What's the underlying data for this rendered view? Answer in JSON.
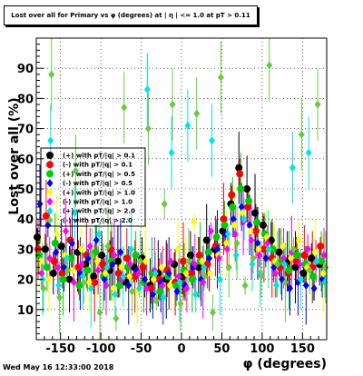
{
  "title": "Lost over all for Primary vs φ (degrees) at | η | <= 1.0 at pT > 0.11",
  "timestamp": "Wed May 16 12:33:00 2018",
  "chart_data": {
    "type": "scatter",
    "title": "Lost over all for Primary vs φ (degrees) at | η | <= 1.0 at pT > 0.11",
    "xlabel": "φ (degrees)",
    "ylabel": "Lost over all (%)",
    "xlim": [
      -180,
      180
    ],
    "ylim": [
      0,
      100
    ],
    "xticks": [
      -150,
      -100,
      -50,
      0,
      50,
      100,
      150
    ],
    "yticks": [
      10,
      20,
      30,
      40,
      50,
      60,
      70,
      80,
      90
    ],
    "grid": true,
    "legend_position": "left-middle",
    "series": [
      {
        "name": "(+) with pT/|q| > 0.1",
        "color": "#000000",
        "marker": "circle",
        "values": [
          [
            -175,
            34
          ],
          [
            -165,
            30
          ],
          [
            -155,
            22
          ],
          [
            -145,
            31
          ],
          [
            -135,
            20
          ],
          [
            -125,
            29
          ],
          [
            -115,
            25
          ],
          [
            -105,
            21
          ],
          [
            -95,
            28
          ],
          [
            -85,
            23
          ],
          [
            -75,
            26
          ],
          [
            -65,
            19
          ],
          [
            -55,
            24
          ],
          [
            -45,
            27
          ],
          [
            -35,
            18
          ],
          [
            -25,
            22
          ],
          [
            -15,
            20
          ],
          [
            -5,
            25
          ],
          [
            5,
            21
          ],
          [
            15,
            28
          ],
          [
            25,
            24
          ],
          [
            35,
            33
          ],
          [
            45,
            30
          ],
          [
            55,
            36
          ],
          [
            65,
            45
          ],
          [
            75,
            57
          ],
          [
            85,
            50
          ],
          [
            95,
            42
          ],
          [
            105,
            38
          ],
          [
            115,
            33
          ],
          [
            125,
            29
          ],
          [
            135,
            26
          ],
          [
            145,
            24
          ],
          [
            155,
            22
          ],
          [
            165,
            27
          ],
          [
            175,
            25
          ]
        ]
      },
      {
        "name": "(-) with pT/|q| > 0.1",
        "color": "#ff0000",
        "marker": "circle",
        "values": [
          [
            -175,
            30
          ],
          [
            -165,
            41
          ],
          [
            -155,
            26
          ],
          [
            -145,
            22
          ],
          [
            -135,
            33
          ],
          [
            -125,
            24
          ],
          [
            -115,
            28
          ],
          [
            -105,
            19
          ],
          [
            -95,
            25
          ],
          [
            -85,
            30
          ],
          [
            -75,
            22
          ],
          [
            -65,
            27
          ],
          [
            -55,
            21
          ],
          [
            -45,
            24
          ],
          [
            -35,
            17
          ],
          [
            -25,
            20
          ],
          [
            -15,
            23
          ],
          [
            -5,
            19
          ],
          [
            5,
            26
          ],
          [
            15,
            22
          ],
          [
            25,
            28
          ],
          [
            35,
            25
          ],
          [
            45,
            31
          ],
          [
            55,
            40
          ],
          [
            65,
            48
          ],
          [
            75,
            55
          ],
          [
            85,
            44
          ],
          [
            95,
            36
          ],
          [
            105,
            30
          ],
          [
            115,
            27
          ],
          [
            125,
            24
          ],
          [
            135,
            22
          ],
          [
            145,
            26
          ],
          [
            155,
            28
          ],
          [
            165,
            24
          ],
          [
            175,
            31
          ]
        ]
      },
      {
        "name": "(+) with pT/|q| > 0.5",
        "color": "#00cc00",
        "marker": "circle",
        "values": [
          [
            -175,
            28
          ],
          [
            -165,
            24
          ],
          [
            -155,
            32
          ],
          [
            -145,
            20
          ],
          [
            -135,
            27
          ],
          [
            -125,
            18
          ],
          [
            -115,
            23
          ],
          [
            -105,
            29
          ],
          [
            -95,
            21
          ],
          [
            -85,
            26
          ],
          [
            -75,
            18
          ],
          [
            -65,
            24
          ],
          [
            -55,
            28
          ],
          [
            -45,
            19
          ],
          [
            -35,
            22
          ],
          [
            -25,
            16
          ],
          [
            -15,
            21
          ],
          [
            -5,
            18
          ],
          [
            5,
            23
          ],
          [
            15,
            20
          ],
          [
            25,
            26
          ],
          [
            35,
            29
          ],
          [
            45,
            34
          ],
          [
            55,
            38
          ],
          [
            65,
            44
          ],
          [
            75,
            50
          ],
          [
            85,
            46
          ],
          [
            95,
            39
          ],
          [
            105,
            35
          ],
          [
            115,
            30
          ],
          [
            125,
            26
          ],
          [
            135,
            23
          ],
          [
            145,
            28
          ],
          [
            155,
            25
          ],
          [
            165,
            21
          ],
          [
            175,
            26
          ]
        ]
      },
      {
        "name": "(-) with pT/|q| > 0.5",
        "color": "#0000ff",
        "marker": "diamond",
        "values": [
          [
            -175,
            45
          ],
          [
            -165,
            38
          ],
          [
            -155,
            29
          ],
          [
            -145,
            24
          ],
          [
            -135,
            32
          ],
          [
            -125,
            22
          ],
          [
            -115,
            27
          ],
          [
            -105,
            33
          ],
          [
            -95,
            20
          ],
          [
            -85,
            25
          ],
          [
            -75,
            29
          ],
          [
            -65,
            18
          ],
          [
            -55,
            23
          ],
          [
            -45,
            20
          ],
          [
            -35,
            15
          ],
          [
            -25,
            19
          ],
          [
            -15,
            22
          ],
          [
            -5,
            16
          ],
          [
            5,
            18
          ],
          [
            15,
            24
          ],
          [
            25,
            20
          ],
          [
            35,
            27
          ],
          [
            45,
            30
          ],
          [
            55,
            35
          ],
          [
            65,
            40
          ],
          [
            75,
            44
          ],
          [
            85,
            38
          ],
          [
            95,
            32
          ],
          [
            105,
            27
          ],
          [
            115,
            24
          ],
          [
            125,
            20
          ],
          [
            135,
            17
          ],
          [
            145,
            19
          ],
          [
            155,
            18
          ],
          [
            165,
            17
          ],
          [
            175,
            20
          ]
        ]
      },
      {
        "name": "(+) with pT/|q| > 1.0",
        "color": "#ffff00",
        "marker": "diamond",
        "values": [
          [
            -175,
            26
          ],
          [
            -165,
            20
          ],
          [
            -155,
            35
          ],
          [
            -145,
            28
          ],
          [
            -135,
            23
          ],
          [
            -125,
            30
          ],
          [
            -115,
            19
          ],
          [
            -105,
            26
          ],
          [
            -95,
            22
          ],
          [
            -85,
            17
          ],
          [
            -75,
            24
          ],
          [
            -65,
            21
          ],
          [
            -55,
            16
          ],
          [
            -45,
            26
          ],
          [
            -35,
            20
          ],
          [
            -25,
            24
          ],
          [
            -15,
            18
          ],
          [
            -5,
            30
          ],
          [
            5,
            22
          ],
          [
            15,
            39
          ],
          [
            25,
            26
          ],
          [
            35,
            22
          ],
          [
            45,
            28
          ],
          [
            55,
            32
          ],
          [
            65,
            38
          ],
          [
            75,
            42
          ],
          [
            85,
            36
          ],
          [
            95,
            30
          ],
          [
            105,
            34
          ],
          [
            115,
            26
          ],
          [
            125,
            31
          ],
          [
            135,
            27
          ],
          [
            145,
            33
          ],
          [
            155,
            24
          ],
          [
            165,
            29
          ],
          [
            175,
            22
          ]
        ]
      },
      {
        "name": "(-) with pT/|q| > 1.0",
        "color": "#ff00ff",
        "marker": "diamond",
        "values": [
          [
            -175,
            22
          ],
          [
            -165,
            27
          ],
          [
            -155,
            24
          ],
          [
            -145,
            36
          ],
          [
            -135,
            19
          ],
          [
            -125,
            25
          ],
          [
            -115,
            31
          ],
          [
            -105,
            23
          ],
          [
            -95,
            18
          ],
          [
            -85,
            28
          ],
          [
            -75,
            20
          ],
          [
            -65,
            25
          ],
          [
            -55,
            22
          ],
          [
            -45,
            17
          ],
          [
            -35,
            23
          ],
          [
            -25,
            18
          ],
          [
            -15,
            26
          ],
          [
            -5,
            21
          ],
          [
            5,
            17
          ],
          [
            15,
            25
          ],
          [
            25,
            19
          ],
          [
            35,
            36
          ],
          [
            45,
            27
          ],
          [
            55,
            30
          ],
          [
            65,
            35
          ],
          [
            75,
            39
          ],
          [
            85,
            33
          ],
          [
            95,
            28
          ],
          [
            105,
            32
          ],
          [
            115,
            22
          ],
          [
            125,
            27
          ],
          [
            135,
            29
          ],
          [
            145,
            25
          ],
          [
            155,
            30
          ],
          [
            165,
            26
          ],
          [
            175,
            28
          ]
        ]
      },
      {
        "name": "(+) with pT/|q| > 2.0",
        "color": "#00e5e5",
        "marker": "diamond",
        "values": [
          [
            -175,
            20
          ],
          [
            -165,
            66
          ],
          [
            -155,
            18
          ],
          [
            -145,
            27
          ],
          [
            -135,
            42
          ],
          [
            -125,
            21
          ],
          [
            -115,
            17
          ],
          [
            -105,
            35
          ],
          [
            -95,
            24
          ],
          [
            -85,
            15
          ],
          [
            -75,
            21
          ],
          [
            -65,
            30
          ],
          [
            -55,
            17
          ],
          [
            -45,
            83
          ],
          [
            -35,
            22
          ],
          [
            -25,
            14
          ],
          [
            -15,
            62
          ],
          [
            -5,
            19
          ],
          [
            5,
            71
          ],
          [
            15,
            15
          ],
          [
            25,
            24
          ],
          [
            35,
            66
          ],
          [
            45,
            20
          ],
          [
            55,
            35
          ],
          [
            65,
            28
          ],
          [
            75,
            40
          ],
          [
            85,
            25
          ],
          [
            95,
            22
          ],
          [
            105,
            30
          ],
          [
            115,
            18
          ],
          [
            125,
            25
          ],
          [
            135,
            57
          ],
          [
            145,
            20
          ],
          [
            155,
            62
          ],
          [
            165,
            26
          ],
          [
            175,
            19
          ]
        ]
      },
      {
        "name": "(-) with pT/|q| > 2.0",
        "color": "#66cc44",
        "marker": "diamond",
        "values": [
          [
            -175,
            17
          ],
          [
            -165,
            88
          ],
          [
            -155,
            14
          ],
          [
            -145,
            23
          ],
          [
            -135,
            56
          ],
          [
            -125,
            19
          ],
          [
            -115,
            28
          ],
          [
            -105,
            9
          ],
          [
            -95,
            31
          ],
          [
            -85,
            7
          ],
          [
            -75,
            77
          ],
          [
            -65,
            16
          ],
          [
            -55,
            26
          ],
          [
            -45,
            70
          ],
          [
            -35,
            13
          ],
          [
            -25,
            45
          ],
          [
            -15,
            78
          ],
          [
            -5,
            12
          ],
          [
            5,
            26
          ],
          [
            15,
            75
          ],
          [
            25,
            21
          ],
          [
            35,
            9
          ],
          [
            45,
            87
          ],
          [
            55,
            24
          ],
          [
            65,
            32
          ],
          [
            75,
            18
          ],
          [
            85,
            27
          ],
          [
            95,
            21
          ],
          [
            105,
            91
          ],
          [
            115,
            25
          ],
          [
            125,
            19
          ],
          [
            135,
            30
          ],
          [
            145,
            68
          ],
          [
            155,
            23
          ],
          [
            165,
            78
          ],
          [
            175,
            24
          ]
        ]
      }
    ]
  }
}
